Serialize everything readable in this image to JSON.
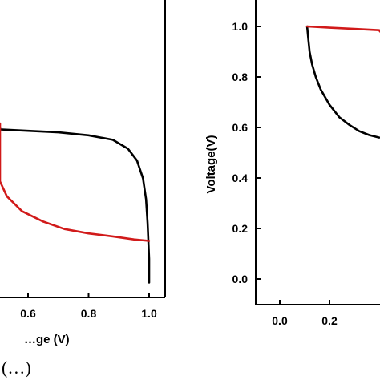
{
  "chart_data": [
    {
      "type": "line",
      "panel": "left",
      "xlabel": "…ge (V)",
      "ylabel": "",
      "xlim": [
        0.45,
        1.06
      ],
      "ylim": [
        0,
        1
      ],
      "xticks": [
        "0.6",
        "0.8",
        "1.0"
      ],
      "xtick_values": [
        0.6,
        0.8,
        1.0
      ],
      "panel_label": "(…)",
      "series": [
        {
          "color": "#000000",
          "points": [
            [
              0.45,
              0.57
            ],
            [
              0.5,
              0.565
            ],
            [
              0.6,
              0.56
            ],
            [
              0.7,
              0.555
            ],
            [
              0.8,
              0.545
            ],
            [
              0.88,
              0.53
            ],
            [
              0.93,
              0.5
            ],
            [
              0.96,
              0.46
            ],
            [
              0.98,
              0.4
            ],
            [
              0.99,
              0.33
            ],
            [
              0.995,
              0.25
            ],
            [
              1.0,
              0.13
            ],
            [
              1.0,
              0.05
            ]
          ]
        },
        {
          "color": "#d11a1a",
          "points": [
            [
              0.45,
              0.585
            ],
            [
              0.47,
              0.53
            ],
            [
              0.48,
              0.45
            ],
            [
              0.5,
              0.39
            ],
            [
              0.53,
              0.34
            ],
            [
              0.58,
              0.29
            ],
            [
              0.65,
              0.255
            ],
            [
              0.72,
              0.23
            ],
            [
              0.8,
              0.215
            ],
            [
              0.88,
              0.205
            ],
            [
              0.95,
              0.195
            ],
            [
              1.0,
              0.19
            ]
          ]
        }
      ]
    },
    {
      "type": "line",
      "panel": "right",
      "xlabel": "",
      "ylabel": "Voltage(V)",
      "xlim": [
        -0.17,
        0.5
      ],
      "ylim": [
        -0.11,
        1.1
      ],
      "xticks": [
        "0.0",
        "0.2"
      ],
      "xtick_values": [
        0.0,
        0.2
      ],
      "yticks": [
        "0.0",
        "0.2",
        "0.4",
        "0.6",
        "0.8",
        "1.0"
      ],
      "ytick_values": [
        0.0,
        0.2,
        0.4,
        0.6,
        0.8,
        1.0
      ],
      "series": [
        {
          "color": "#000000",
          "points": [
            [
              0.11,
              1.0
            ],
            [
              0.115,
              0.95
            ],
            [
              0.12,
              0.9
            ],
            [
              0.13,
              0.85
            ],
            [
              0.145,
              0.8
            ],
            [
              0.165,
              0.75
            ],
            [
              0.2,
              0.69
            ],
            [
              0.24,
              0.64
            ],
            [
              0.28,
              0.61
            ],
            [
              0.32,
              0.585
            ],
            [
              0.36,
              0.57
            ],
            [
              0.4,
              0.56
            ]
          ]
        },
        {
          "color": "#d11a1a",
          "points": [
            [
              0.11,
              1.0
            ],
            [
              0.2,
              0.995
            ],
            [
              0.3,
              0.99
            ],
            [
              0.4,
              0.985
            ],
            [
              0.5,
              0.98
            ]
          ]
        }
      ]
    }
  ]
}
